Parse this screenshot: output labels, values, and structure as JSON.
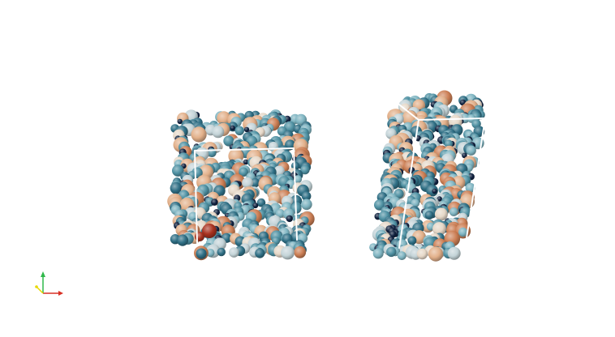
{
  "viewport": {
    "background": "#ffffff"
  },
  "palette": {
    "navy": "#10213f",
    "teal_dark": "#2f6f85",
    "teal": "#4f91a3",
    "teal_light": "#7fb5c2",
    "silver": "#c4d4d8",
    "cream": "#e6d8c8",
    "peach": "#e2b08a",
    "orange": "#cc7f55",
    "red": "#a8321f",
    "box_edge": "#ffffff"
  },
  "axes_widget": {
    "x_axis_color": "#d93025",
    "y_axis_color": "#2fb84a",
    "z_axis_color": "#e8d800"
  }
}
